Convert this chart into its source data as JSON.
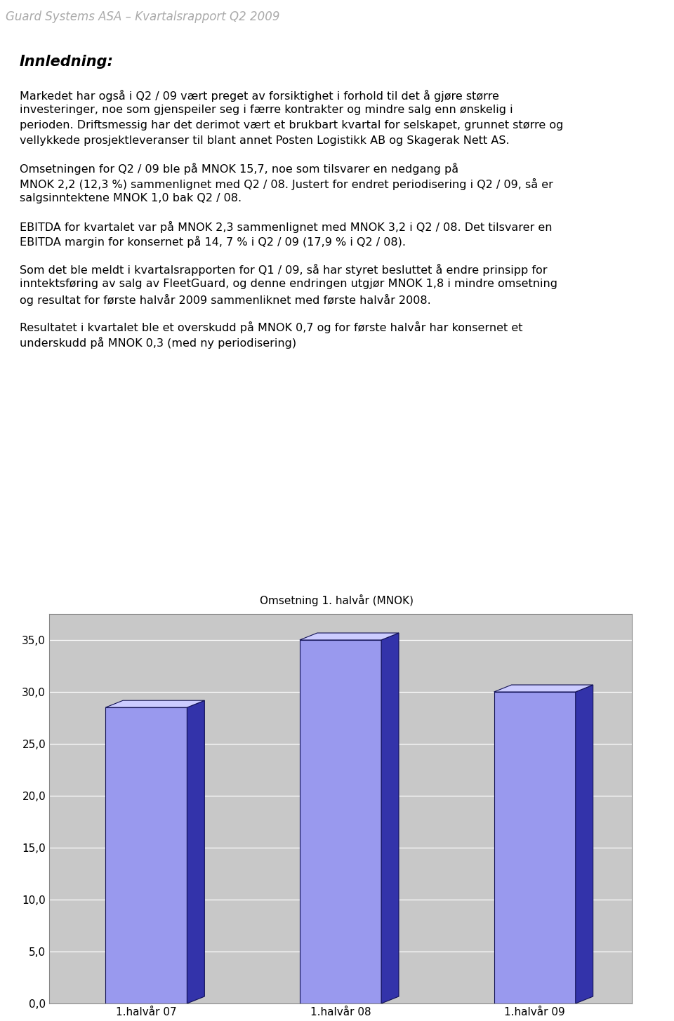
{
  "header_text": "Guard Systems ASA – Kvartalsrapport Q2 2009",
  "header_color": "#aaaaaa",
  "header_fontsize": 12,
  "innledning_title": "Innledning:",
  "paragraphs": [
    "Markedet har også i Q2 / 09 vært preget av forsiktighet i forhold til det å gjøre større\ninvesteringer, noe som gjenspeiler seg i færre kontrakter og mindre salg enn ønskelig i\nperioden. Driftsmessig har det derimot vært et brukbart kvartal for selskapet, grunnet større og\nvellykkede prosjektleveranser til blant annet Posten Logistikk AB og Skagerak Nett AS.",
    "Omsetningen for Q2 / 09 ble på MNOK 15,7, noe som tilsvarer en nedgang på\nMNOK 2,2 (12,3 %) sammenlignet med Q2 / 08. Justert for endret periodisering i Q2 / 09, så er\nsalgsinntektene MNOK 1,0 bak Q2 / 08.",
    "EBITDA for kvartalet var på MNOK 2,3 sammenlignet med MNOK 3,2 i Q2 / 08. Det tilsvarer en\nEBITDA margin for konsernet på 14, 7 % i Q2 / 09 (17,9 % i Q2 / 08).",
    "Som det ble meldt i kvartalsrapporten for Q1 / 09, så har styret besluttet å endre prinsipp for\ninntektsføring av salg av FleetGuard, og denne endringen utgjør MNOK 1,8 i mindre omsetning\nog resultat for første halvår 2009 sammenliknet med første halvår 2008.",
    "Resultatet i kvartalet ble et overskudd på MNOK 0,7 og for første halvår har konsernet et\nunderskudd på MNOK 0,3 (med ny periodisering)"
  ],
  "chart_title": "Omsetning 1. halvår (MNOK)",
  "categories": [
    "1.halvår 07",
    "1.halvår 08",
    "1.halvår 09"
  ],
  "values": [
    28.5,
    35.0,
    30.0
  ],
  "bar_face_color": "#9999ee",
  "bar_top_color": "#ccccff",
  "bar_side_color": "#3333aa",
  "bar_outline_color": "#111155",
  "chart_bg_color": "#c8c8c8",
  "ylim": [
    0,
    37.5
  ],
  "yticks": [
    0.0,
    5.0,
    10.0,
    15.0,
    20.0,
    25.0,
    30.0,
    35.0
  ],
  "text_fontsize": 11.5,
  "innledning_fontsize": 15,
  "chart_title_fontsize": 11
}
